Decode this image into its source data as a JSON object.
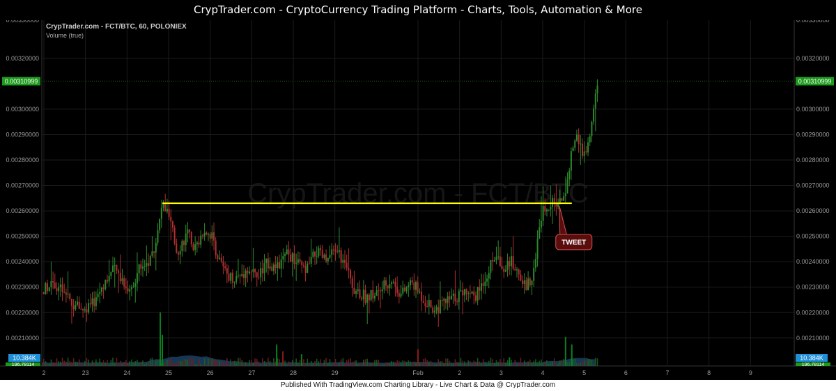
{
  "header": {
    "title": "CrypTrader.com  -  CryptoCurrency Trading Platform  -  Charts, Tools, Automation & More"
  },
  "footer": {
    "text": "Published With TradingView.com Charting Library - Live Chart & Data @ CrypTrader.com"
  },
  "chart_data": {
    "type": "candlestick",
    "title": "CrypTrader.com - FCT/BTC, 60, POLONIEX",
    "subtitle": "Volume (true)",
    "watermark": "CrypTrader.com - FCT/BTC",
    "pair": "FCT/BTC",
    "interval": "60",
    "exchange": "POLONIEX",
    "ylim": [
      0.00199,
      0.00335
    ],
    "y_ticks": [
      "0.00320000",
      "0.00300000",
      "0.00290000",
      "0.00280000",
      "0.00270000",
      "0.00260000",
      "0.00250000",
      "0.00240000",
      "0.00230000",
      "0.00220000",
      "0.00210000"
    ],
    "y_tick_values": [
      0.0032,
      0.003,
      0.0029,
      0.0028,
      0.0027,
      0.0026,
      0.0025,
      0.0024,
      0.0023,
      0.0022,
      0.0021
    ],
    "top_tick": "0.00330000",
    "zero_tick": "0",
    "last_price": {
      "label": "0.00310999",
      "value": 0.00310999
    },
    "volume_label": "10.384K",
    "volume_ma_label": "196.78114",
    "x_ticks": [
      "2",
      "23",
      "24",
      "25",
      "26",
      "27",
      "28",
      "29",
      "Feb",
      "2",
      "3",
      "4",
      "5",
      "6",
      "7",
      "8",
      "9"
    ],
    "x_tick_days": [
      -1,
      0,
      1,
      2,
      3,
      4,
      5,
      6,
      8,
      9,
      10,
      11,
      12,
      13,
      14,
      15,
      16
    ],
    "x_day_range": [
      -1.05,
      17.05
    ],
    "data_end_day": 12.35,
    "price_path": [
      [
        -1.05,
        0.00228
      ],
      [
        -0.8,
        0.00233
      ],
      [
        -0.55,
        0.00228
      ],
      [
        -0.3,
        0.00223
      ],
      [
        0,
        0.00221
      ],
      [
        0.2,
        0.00224
      ],
      [
        0.45,
        0.00232
      ],
      [
        0.7,
        0.00237
      ],
      [
        0.9,
        0.00233
      ],
      [
        1.05,
        0.00228
      ],
      [
        1.3,
        0.00238
      ],
      [
        1.55,
        0.0024
      ],
      [
        1.75,
        0.00252
      ],
      [
        1.85,
        0.00263
      ],
      [
        2.0,
        0.00258
      ],
      [
        2.2,
        0.00244
      ],
      [
        2.45,
        0.00251
      ],
      [
        2.65,
        0.00245
      ],
      [
        2.85,
        0.00253
      ],
      [
        3.05,
        0.0025
      ],
      [
        3.2,
        0.00241
      ],
      [
        3.35,
        0.00236
      ],
      [
        3.6,
        0.00233
      ],
      [
        3.9,
        0.00237
      ],
      [
        4.15,
        0.00234
      ],
      [
        4.4,
        0.0024
      ],
      [
        4.6,
        0.00237
      ],
      [
        4.85,
        0.00243
      ],
      [
        5.05,
        0.0024
      ],
      [
        5.3,
        0.00236
      ],
      [
        5.55,
        0.00244
      ],
      [
        5.8,
        0.0024
      ],
      [
        6.05,
        0.00245
      ],
      [
        6.25,
        0.00238
      ],
      [
        6.45,
        0.0023
      ],
      [
        6.75,
        0.00226
      ],
      [
        7.05,
        0.00228
      ],
      [
        7.35,
        0.00233
      ],
      [
        7.6,
        0.00227
      ],
      [
        7.85,
        0.00232
      ],
      [
        8.1,
        0.00226
      ],
      [
        8.4,
        0.00221
      ],
      [
        8.65,
        0.00224
      ],
      [
        8.9,
        0.00226
      ],
      [
        9.15,
        0.00229
      ],
      [
        9.4,
        0.00227
      ],
      [
        9.65,
        0.00235
      ],
      [
        9.85,
        0.00242
      ],
      [
        10.05,
        0.00238
      ],
      [
        10.25,
        0.0024
      ],
      [
        10.45,
        0.00234
      ],
      [
        10.6,
        0.0023
      ],
      [
        10.75,
        0.00235
      ],
      [
        10.9,
        0.0025
      ],
      [
        11.0,
        0.00262
      ],
      [
        11.2,
        0.00263
      ],
      [
        11.4,
        0.00262
      ],
      [
        11.55,
        0.00268
      ],
      [
        11.7,
        0.00285
      ],
      [
        11.85,
        0.0029
      ],
      [
        11.95,
        0.0028
      ],
      [
        12.1,
        0.00286
      ],
      [
        12.25,
        0.00302
      ],
      [
        12.35,
        0.00311
      ]
    ],
    "vol_spikes": [
      [
        1.8,
        "#0a7f1f",
        0.55
      ],
      [
        1.85,
        "#0a7f1f",
        0.32
      ],
      [
        4.6,
        "#0a7f1f",
        0.22
      ],
      [
        4.75,
        "#8b1a1a",
        0.15
      ],
      [
        8.0,
        "#8b1a1a",
        0.17
      ],
      [
        11.55,
        "#0a7f1f",
        0.3
      ],
      [
        11.7,
        "#0a7f1f",
        0.22
      ],
      [
        5.2,
        "#0a7f1f",
        0.12
      ],
      [
        10.2,
        "#0a7f1f",
        0.09
      ]
    ],
    "annotation": {
      "label": "TWEET",
      "day": 11.4,
      "price": 0.00262,
      "box_day": 11.75,
      "box_price": 0.00248
    },
    "hline": {
      "value": 0.00263,
      "from_day": 1.85,
      "to_day": 11.7,
      "color": "#ffff00"
    },
    "colors": {
      "up": "#2e8b2e",
      "down": "#b03030",
      "grid": "#1c1c1c",
      "axis_text": "#9a9a9a",
      "last_price_bg": "#1d9a1d",
      "volume_badge": "#1f8fd8",
      "annotation_bg": "#5a0d0d",
      "annotation_border": "#d65050",
      "volume_area": "#1f4f78"
    }
  }
}
